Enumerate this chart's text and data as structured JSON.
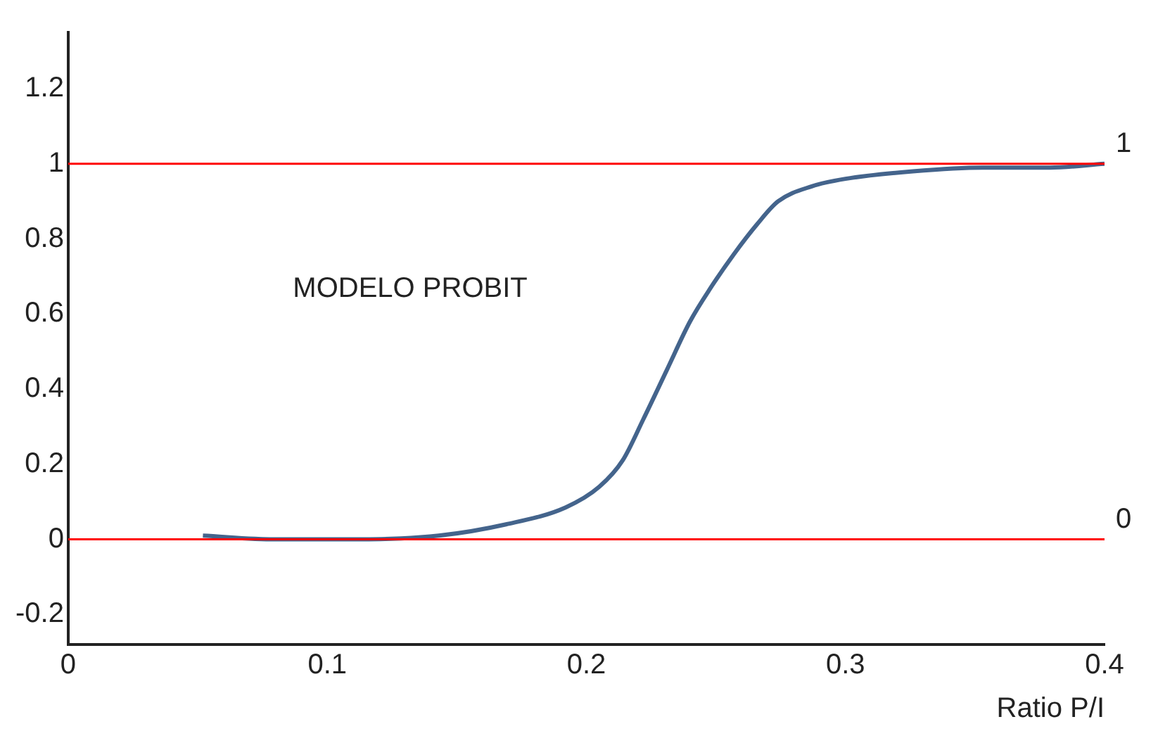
{
  "chart_data": {
    "type": "line",
    "xlabel": "Ratio P/I",
    "x": [
      0.052,
      0.08,
      0.111,
      0.143,
      0.169,
      0.192,
      0.205,
      0.214,
      0.222,
      0.231,
      0.24,
      0.248,
      0.257,
      0.266,
      0.274,
      0.287,
      0.3,
      0.326,
      0.353,
      0.379,
      0.4
    ],
    "series": [
      {
        "color": "#44648c",
        "values": [
          0.01,
          0.0,
          0.0,
          0.01,
          0.04,
          0.085,
          0.14,
          0.21,
          0.32,
          0.45,
          0.58,
          0.67,
          0.76,
          0.84,
          0.9,
          0.94,
          0.96,
          0.98,
          0.99,
          0.99,
          1.0
        ]
      }
    ],
    "xlim": [
      0,
      0.4
    ],
    "xticks": [
      0,
      0.1,
      0.2,
      0.3,
      0.4
    ],
    "ylim": [
      -0.28,
      1.35
    ],
    "yticks": [
      -0.2,
      0,
      0.2,
      0.4,
      0.6,
      0.8,
      1,
      1.2
    ],
    "ref_lines": [
      {
        "axis": "y",
        "value": 1,
        "label": "1",
        "color": "#ff0000"
      },
      {
        "axis": "y",
        "value": 0,
        "label": "0",
        "color": "#ff0000"
      }
    ],
    "annotations": [
      "MODELO PROBIT"
    ],
    "grid": false,
    "legend": false,
    "marker": "none",
    "line_style": "solid"
  }
}
